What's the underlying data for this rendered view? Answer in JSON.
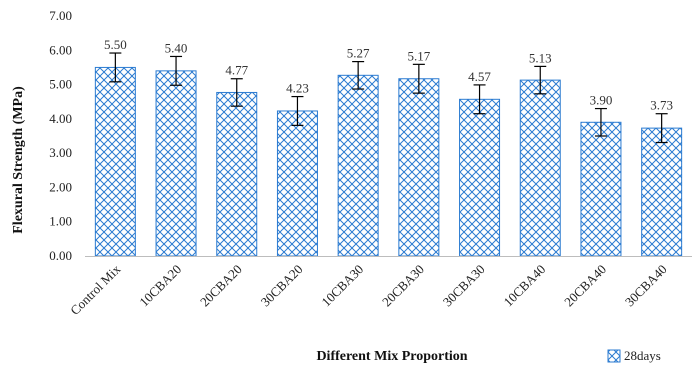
{
  "chart_data": {
    "type": "bar",
    "categories": [
      "Control Mix",
      "10CBA20",
      "20CBA20",
      "30CBA20",
      "10CBA30",
      "20CBA30",
      "30CBA30",
      "10CBA40",
      "20CBA40",
      "30CBA40"
    ],
    "series": [
      {
        "name": "28days",
        "values": [
          5.5,
          5.4,
          4.77,
          4.23,
          5.27,
          5.17,
          4.57,
          5.13,
          3.9,
          3.73
        ],
        "labels": [
          "5.50",
          "5.40",
          "4.77",
          "4.23",
          "5.27",
          "5.17",
          "4.57",
          "5.13",
          "3.90",
          "3.73"
        ],
        "error": [
          0.42,
          0.42,
          0.4,
          0.42,
          0.4,
          0.42,
          0.42,
          0.4,
          0.4,
          0.42
        ]
      }
    ],
    "xlabel": "Different Mix Proportion",
    "ylabel": "Flexural Strength (MPa)",
    "ylim": [
      0,
      7
    ],
    "yticks": [
      "0.00",
      "1.00",
      "2.00",
      "3.00",
      "4.00",
      "5.00",
      "6.00",
      "7.00"
    ],
    "grid": false,
    "legend_position": "bottom-right",
    "bar_color": "#2b7bd1"
  }
}
